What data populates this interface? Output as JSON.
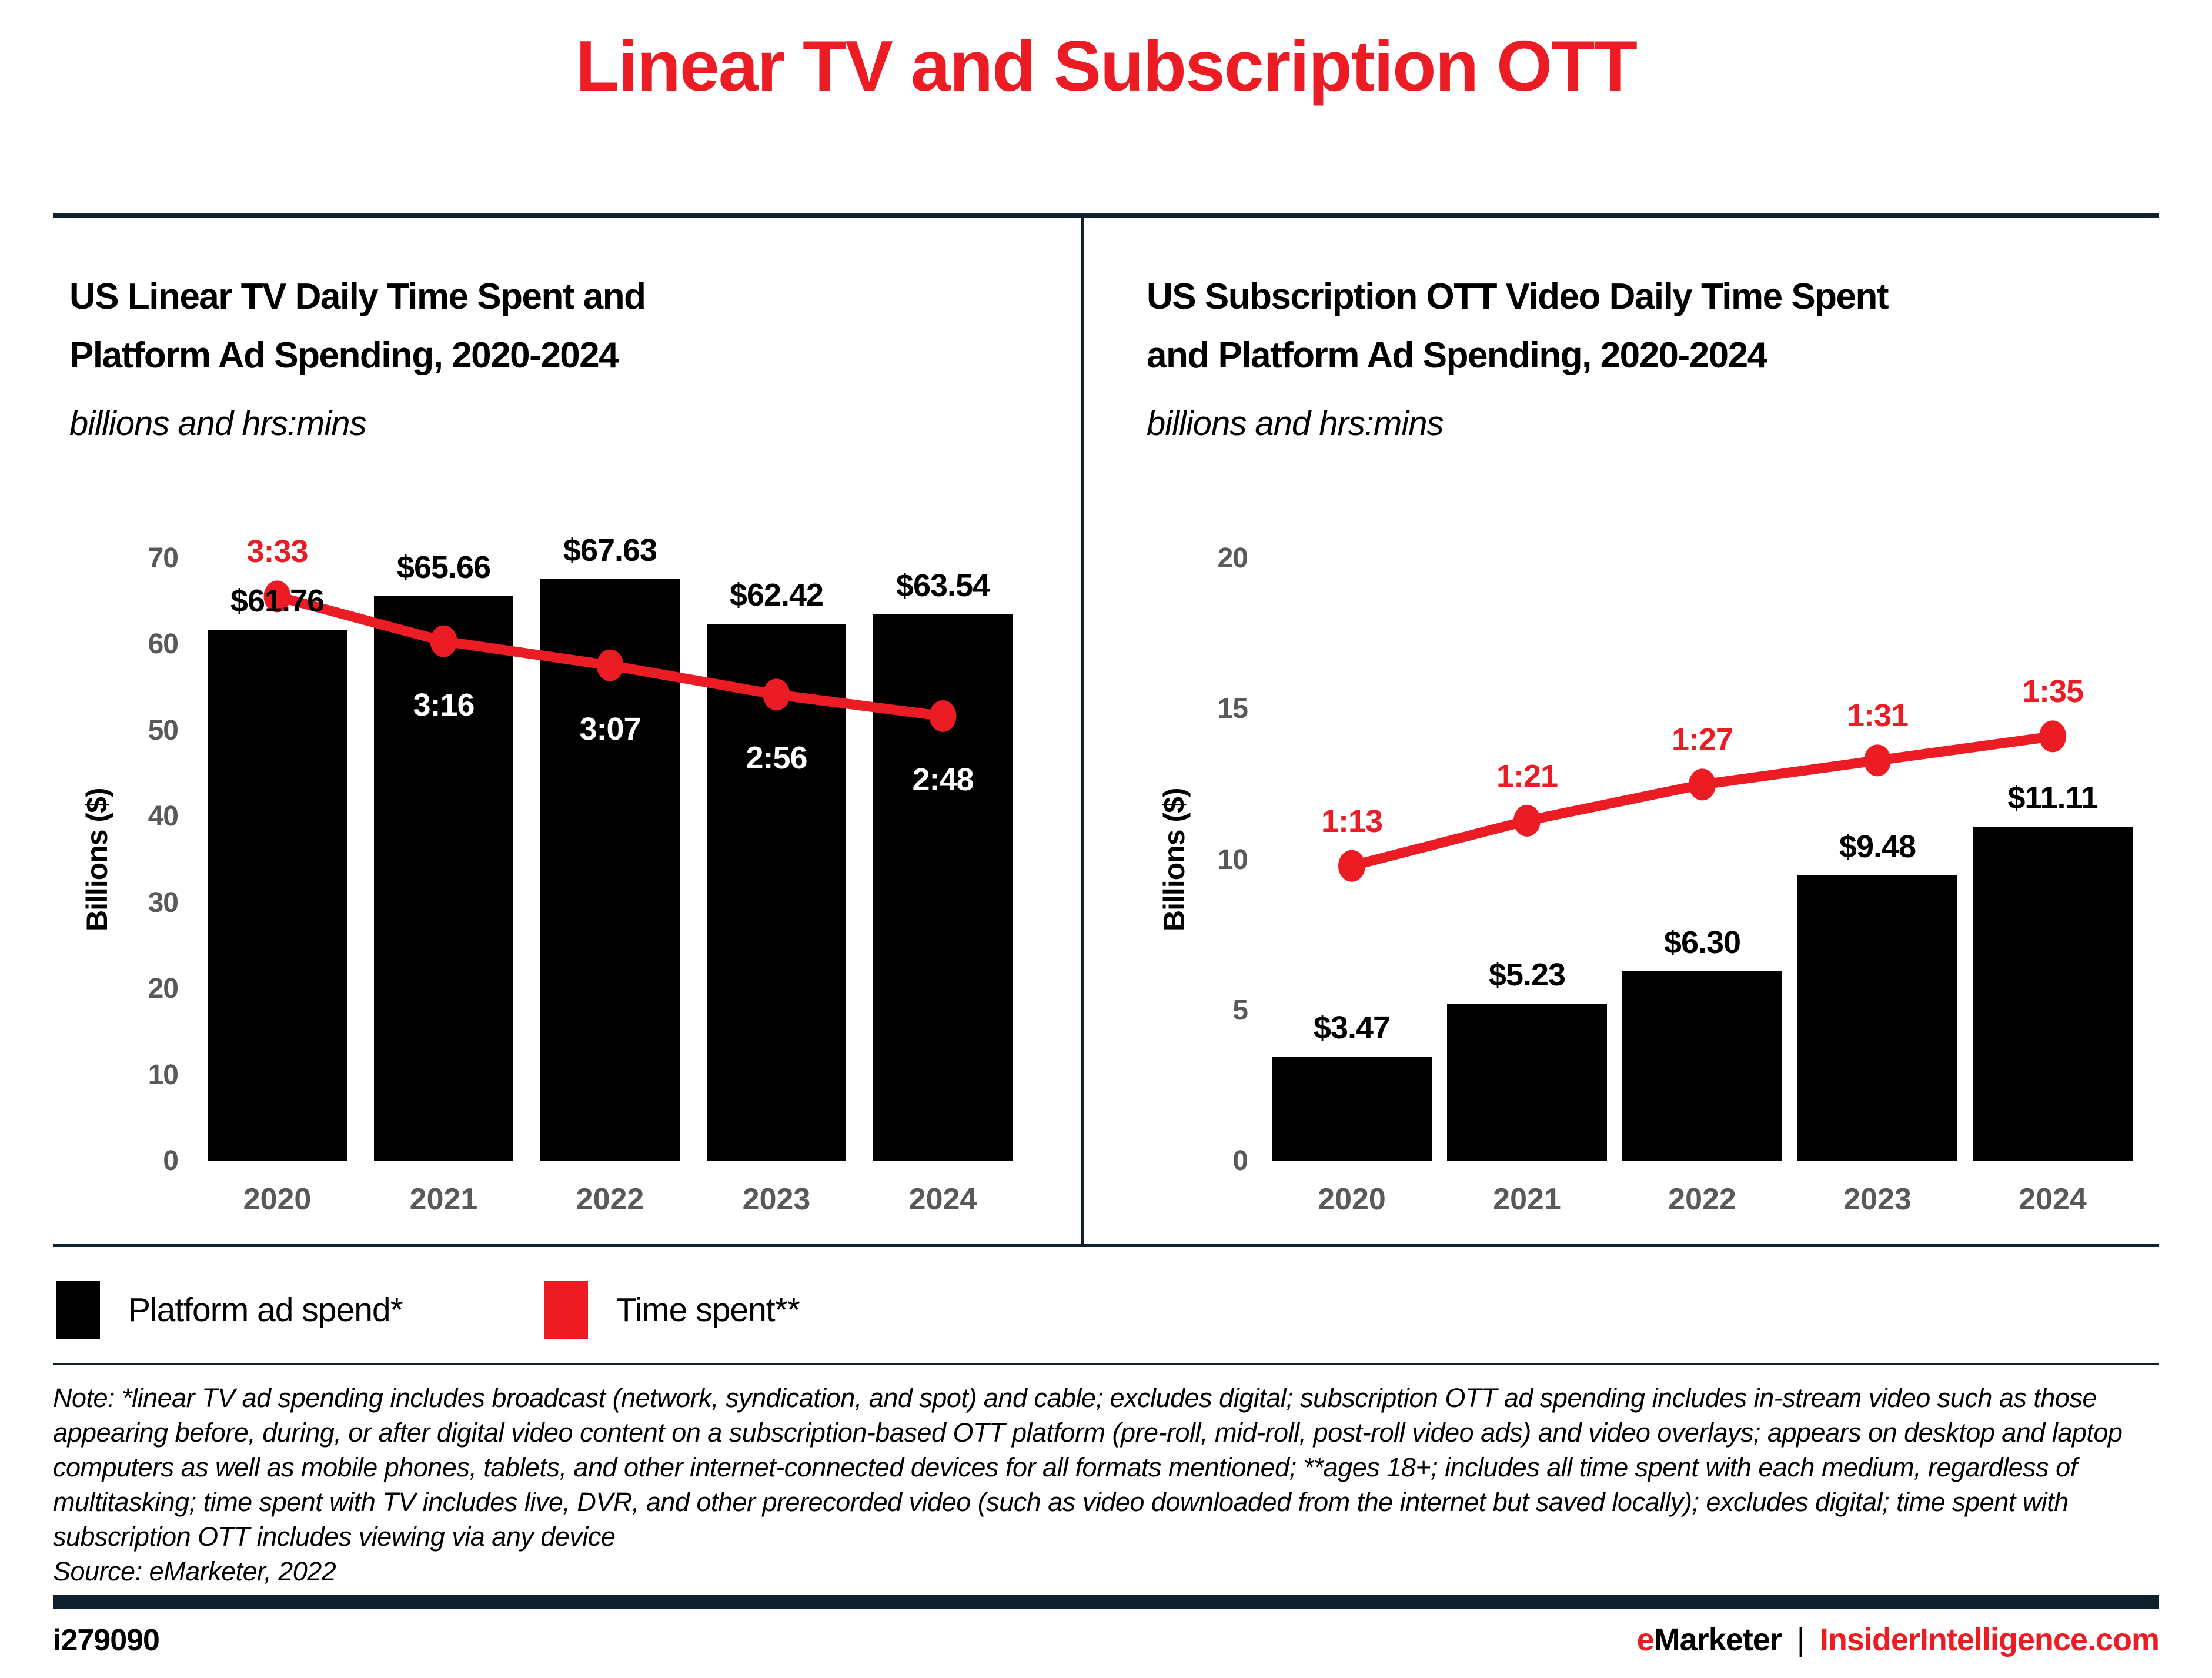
{
  "page": {
    "title": "Linear TV and Subscription OTT",
    "note": "Note: *linear TV ad spending includes broadcast (network, syndication, and spot) and cable; excludes digital; subscription OTT ad spending includes in-stream video such as those appearing before, during, or after digital video content on a subscription-based OTT platform (pre-roll, mid-roll, post-roll video ads) and video overlays; appears on desktop and laptop computers as well as mobile phones, tablets, and other internet-connected devices for all formats mentioned; **ages 18+; includes all time spent with each medium, regardless of multitasking; time spent with TV includes live, DVR, and other prerecorded video (such as video downloaded from the internet but saved locally); excludes digital; time spent with subscription OTT includes viewing via any device",
    "source": "Source: eMarketer, 2022",
    "footer": {
      "id": "i279090",
      "brand_e": "e",
      "brand_rest": "Marketer",
      "separator": "|",
      "site": "InsiderIntelligence.com"
    }
  },
  "colors": {
    "accent_red": "#EC1C24",
    "bar_black": "#000000",
    "rule_dark": "#0F212D",
    "tick_gray": "#58595B"
  },
  "legend": [
    {
      "label": "Platform ad spend*",
      "color": "#000000"
    },
    {
      "label": "Time spent**",
      "color": "#EC1C24"
    }
  ],
  "chart_data": [
    {
      "type": "bar+line",
      "title": "US Linear TV Daily Time Spent and Platform Ad Spending, 2020-2024",
      "title_lines": [
        "US Linear TV Daily Time Spent and",
        "Platform Ad Spending, 2020-2024"
      ],
      "subtitle": "billions and hrs:mins",
      "ylabel": "Billions ($)",
      "ylim": [
        0,
        70
      ],
      "yticks": [
        70,
        60,
        50,
        40,
        30,
        20,
        10,
        0
      ],
      "categories": [
        "2020",
        "2021",
        "2022",
        "2023",
        "2024"
      ],
      "grid": false,
      "series": [
        {
          "name": "Platform ad spend*",
          "type": "bar",
          "values": [
            61.76,
            65.66,
            67.63,
            62.42,
            63.54
          ],
          "labels": [
            "$61.76",
            "$65.66",
            "$67.63",
            "$62.42",
            "$63.54"
          ]
        },
        {
          "name": "Time spent**",
          "type": "line",
          "values": [
            "3:33",
            "3:16",
            "3:07",
            "2:56",
            "2:48"
          ],
          "plotted_on_dollar_axis": [
            65.6,
            60.4,
            57.6,
            54.2,
            51.7
          ],
          "label_positions": [
            "above",
            "below",
            "below",
            "below",
            "below"
          ],
          "label_colors": [
            "red",
            "white",
            "white",
            "white",
            "white"
          ]
        }
      ]
    },
    {
      "type": "bar+line",
      "title": "US Subscription OTT Video Daily Time Spent and Platform Ad Spending, 2020-2024",
      "title_lines": [
        "US Subscription OTT Video Daily Time Spent",
        "and Platform Ad Spending, 2020-2024"
      ],
      "subtitle": "billions and hrs:mins",
      "ylabel": "Billions ($)",
      "ylim": [
        0,
        20
      ],
      "yticks": [
        20,
        15,
        10,
        5,
        0
      ],
      "categories": [
        "2020",
        "2021",
        "2022",
        "2023",
        "2024"
      ],
      "grid": false,
      "series": [
        {
          "name": "Platform ad spend*",
          "type": "bar",
          "values": [
            3.47,
            5.23,
            6.3,
            9.48,
            11.11
          ],
          "labels": [
            "$3.47",
            "$5.23",
            "$6.30",
            "$9.48",
            "$11.11"
          ]
        },
        {
          "name": "Time spent**",
          "type": "line",
          "values": [
            "1:13",
            "1:21",
            "1:27",
            "1:31",
            "1:35"
          ],
          "plotted_on_dollar_axis": [
            9.8,
            11.3,
            12.5,
            13.3,
            14.1
          ],
          "label_positions": [
            "above",
            "above",
            "above",
            "above",
            "above"
          ],
          "label_colors": [
            "red",
            "red",
            "red",
            "red",
            "red"
          ]
        }
      ]
    }
  ]
}
